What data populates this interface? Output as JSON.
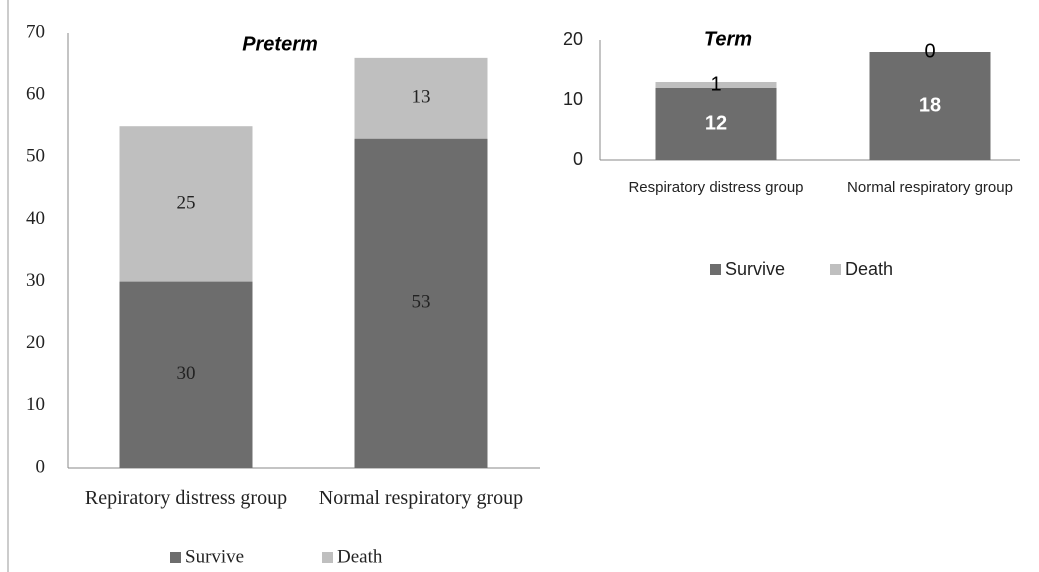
{
  "chart_data": [
    {
      "type": "bar",
      "stacked": true,
      "title": "Preterm",
      "categories": [
        "Repiratory distress group",
        "Normal respiratory group"
      ],
      "series": [
        {
          "name": "Survive",
          "color": "#6d6d6d",
          "values": [
            30,
            53
          ]
        },
        {
          "name": "Death",
          "color": "#bfbfbf",
          "values": [
            25,
            13
          ]
        }
      ],
      "ylim": [
        0,
        70
      ],
      "yticks": [
        0,
        10,
        20,
        30,
        40,
        50,
        60,
        70
      ],
      "legend": "bottom"
    },
    {
      "type": "bar",
      "stacked": true,
      "title": "Term",
      "categories": [
        "Respiratory distress group",
        "Normal respiratory group"
      ],
      "series": [
        {
          "name": "Survive",
          "color": "#6d6d6d",
          "values": [
            12,
            18
          ]
        },
        {
          "name": "Death",
          "color": "#bfbfbf",
          "values": [
            1,
            0
          ]
        }
      ],
      "ylim": [
        0,
        20
      ],
      "yticks": [
        0,
        10,
        20
      ],
      "legend": "bottom"
    }
  ]
}
